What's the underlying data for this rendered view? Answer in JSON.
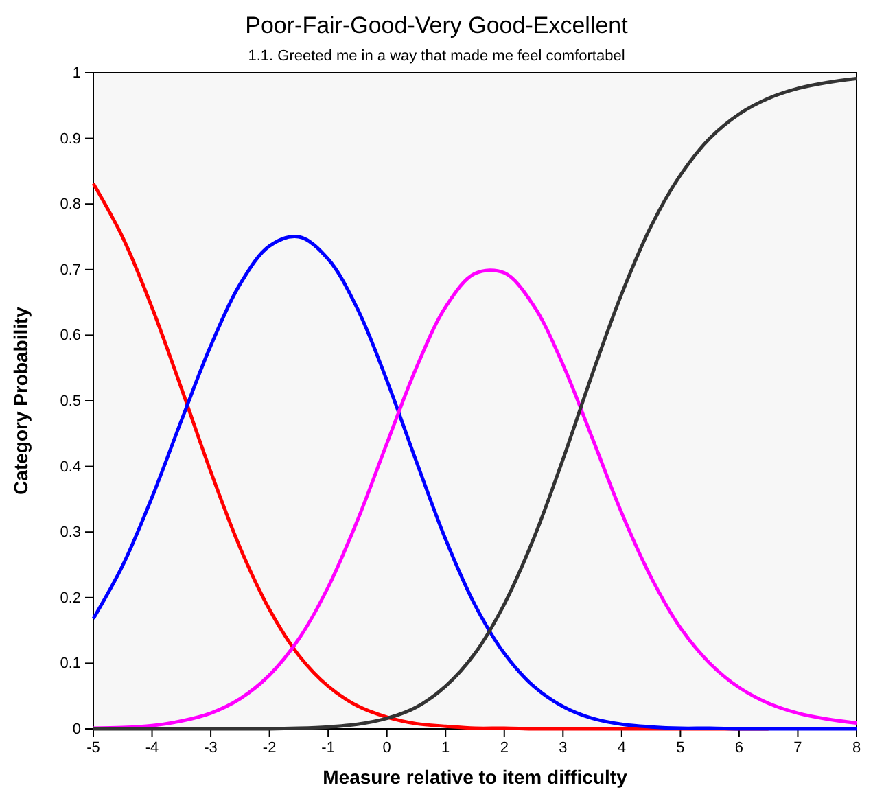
{
  "chart_data": {
    "type": "line",
    "title": "Poor-Fair-Good-Very Good-Excellent",
    "subtitle": "1.1. Greeted me in a way that made me feel comfortabel",
    "xlabel": "Measure relative to item difficulty",
    "ylabel": "Category Probability",
    "x": [
      -5,
      -4.5,
      -4,
      -3.5,
      -3,
      -2.5,
      -2,
      -1.5,
      -1,
      -0.5,
      0,
      0.5,
      1,
      1.5,
      2,
      2.5,
      3,
      3.5,
      4,
      4.5,
      5,
      5.5,
      6,
      6.5,
      7,
      7.5,
      8
    ],
    "series": [
      {
        "color": "#ff0000",
        "values": [
          0.831,
          0.749,
          0.642,
          0.519,
          0.392,
          0.276,
          0.182,
          0.112,
          0.065,
          0.035,
          0.018,
          0.008,
          0.004,
          0.001,
          0.001,
          0,
          0,
          0,
          0,
          0,
          0,
          0,
          0,
          0,
          null,
          null,
          null
        ]
      },
      {
        "color": "#0000ff",
        "values": [
          0.168,
          0.249,
          0.353,
          0.47,
          0.584,
          0.678,
          0.736,
          0.75,
          0.716,
          0.64,
          0.531,
          0.408,
          0.289,
          0.189,
          0.115,
          0.065,
          0.034,
          0.016,
          0.007,
          0.003,
          0.001,
          0.001,
          0,
          0,
          0,
          0,
          0
        ]
      },
      {
        "color": "#ff00ff",
        "values": [
          0.001,
          0.002,
          0.005,
          0.012,
          0.024,
          0.046,
          0.082,
          0.137,
          0.216,
          0.318,
          0.435,
          0.55,
          0.643,
          0.694,
          0.695,
          0.645,
          0.555,
          0.443,
          0.329,
          0.231,
          0.154,
          0.1,
          0.063,
          0.039,
          0.024,
          0.015,
          0.009
        ]
      },
      {
        "color": "#333333",
        "values": [
          0,
          0,
          0,
          0,
          0,
          0,
          0,
          0.001,
          0.003,
          0.007,
          0.016,
          0.033,
          0.065,
          0.115,
          0.19,
          0.29,
          0.411,
          0.541,
          0.663,
          0.766,
          0.844,
          0.9,
          0.937,
          0.961,
          0.976,
          0.985,
          0.991
        ]
      }
    ],
    "xlim": [
      -5,
      8
    ],
    "xticks": [
      -5,
      -4,
      -3,
      -2,
      -1,
      0,
      1,
      2,
      3,
      4,
      5,
      6,
      7,
      8
    ],
    "ylim": [
      0,
      1
    ],
    "yticks": [
      0,
      0.1,
      0.2,
      0.3,
      0.4,
      0.5,
      0.6,
      0.7,
      0.8,
      0.9,
      1
    ],
    "grid": false,
    "marker": "none",
    "line_style": "solid"
  }
}
